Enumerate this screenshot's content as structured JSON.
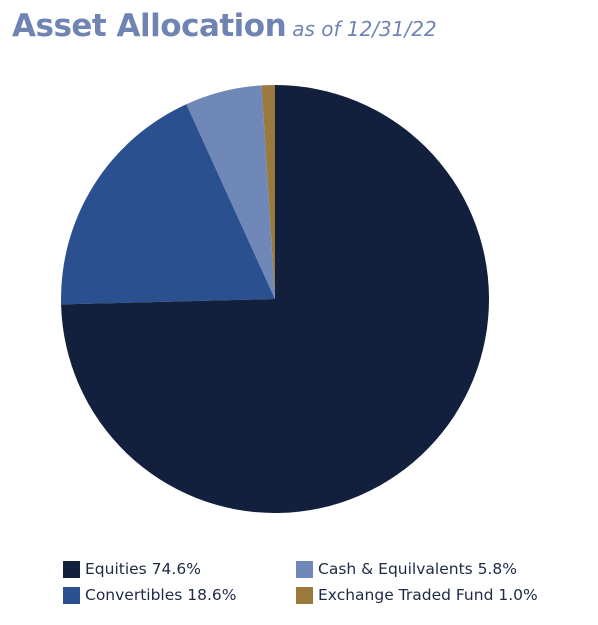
{
  "header": {
    "title": "Asset Allocation",
    "subtitle": "as of 12/31/22"
  },
  "chart_data": {
    "type": "pie",
    "categories": [
      "Equities",
      "Convertibles",
      "Cash & Equilvalents",
      "Exchange Traded Fund"
    ],
    "values": [
      74.6,
      18.6,
      5.8,
      1.0
    ],
    "colors": [
      "#13203d",
      "#2b5090",
      "#6f88b8",
      "#9a7a3c"
    ],
    "start_angle_deg": 0,
    "direction": "clockwise",
    "draw_order": [
      3,
      2,
      1,
      0
    ]
  },
  "legend": {
    "items": [
      {
        "label": "Equities 74.6%",
        "color": "#13203d"
      },
      {
        "label": "Cash & Equilvalents 5.8%",
        "color": "#6f88b8"
      },
      {
        "label": "Convertibles 18.6%",
        "color": "#2b5090"
      },
      {
        "label": "Exchange Traded Fund 1.0%",
        "color": "#9a7a3c"
      }
    ]
  }
}
